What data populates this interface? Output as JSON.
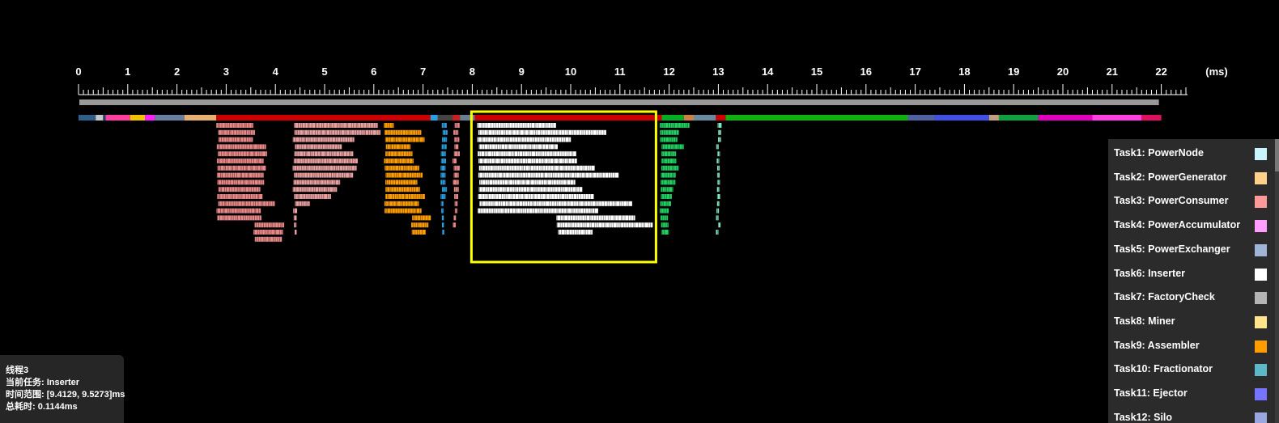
{
  "timeline": {
    "unit_label": "(ms)",
    "tick_labels": [
      "0",
      "1",
      "2",
      "3",
      "4",
      "5",
      "6",
      "7",
      "8",
      "9",
      "10",
      "11",
      "12",
      "13",
      "14",
      "15",
      "16",
      "17",
      "18",
      "19",
      "20",
      "21",
      "22"
    ],
    "range_ms": [
      0,
      22
    ]
  },
  "colors": {
    "background": "#000000",
    "thread_bar": "#cc0000",
    "selection": "#ffff00",
    "overview_bar": "#999999"
  },
  "selection": {
    "start_ms": 8.0,
    "end_ms": 11.75
  },
  "legend": {
    "items": [
      {
        "label": "Task1: PowerNode",
        "color": "#c8f6ff"
      },
      {
        "label": "Task2: PowerGenerator",
        "color": "#ffd08a"
      },
      {
        "label": "Task3: PowerConsumer",
        "color": "#ff9898"
      },
      {
        "label": "Task4: PowerAccumulator",
        "color": "#ff9eff"
      },
      {
        "label": "Task5: PowerExchanger",
        "color": "#a0b4d8"
      },
      {
        "label": "Task6: Inserter",
        "color": "#ffffff"
      },
      {
        "label": "Task7: FactoryCheck",
        "color": "#b4b4b4"
      },
      {
        "label": "Task8: Miner",
        "color": "#ffe48c"
      },
      {
        "label": "Task9: Assembler",
        "color": "#ff9d00"
      },
      {
        "label": "Task10: Fractionator",
        "color": "#5ab8c8"
      },
      {
        "label": "Task11: Ejector",
        "color": "#7474ff"
      },
      {
        "label": "Task12: Silo",
        "color": "#9aa6e0"
      }
    ]
  },
  "tooltip": {
    "thread": "线程3",
    "current_task": "当前任务: Inserter",
    "time_range": "时间范围: [9.4129, 9.5273]ms",
    "total_time": "总耗时: 0.1144ms"
  }
}
